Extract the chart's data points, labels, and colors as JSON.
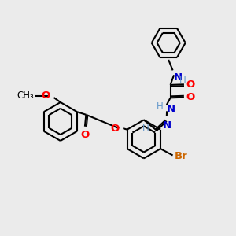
{
  "bg_color": "#ebebeb",
  "line_color": "#000000",
  "bond_lw": 1.5,
  "atom_colors": {
    "O": "#ff0000",
    "N": "#0000cc",
    "Br": "#cc6600",
    "H": "#6699cc",
    "C": "#000000"
  },
  "font_size": 8.5,
  "fig_size": [
    3.0,
    3.0
  ],
  "dpi": 100
}
